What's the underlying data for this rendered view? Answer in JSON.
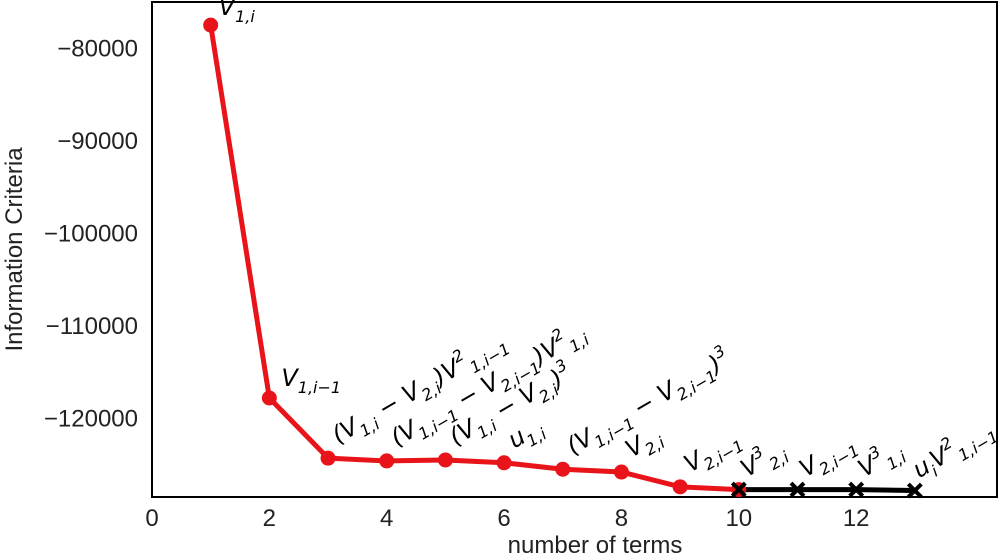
{
  "chart_data": {
    "type": "line",
    "title": "",
    "xlabel": "number of terms",
    "ylabel": "Information Criteria",
    "xlim": [
      0,
      14.4
    ],
    "ylim": [
      -128500,
      -75000
    ],
    "xticks": [
      0,
      2,
      4,
      6,
      8,
      10,
      12
    ],
    "yticks": [
      -80000,
      -90000,
      -100000,
      -110000,
      -120000
    ],
    "ytick_labels": [
      "−80000",
      "−90000",
      "−100000",
      "−110000",
      "−120000"
    ],
    "grid": false,
    "legend": "none",
    "series": [
      {
        "color": "#e8141a",
        "marker": "circle",
        "x": [
          1,
          2,
          3,
          4,
          5,
          6,
          7,
          8,
          9,
          10
        ],
        "y": [
          -77500,
          -117800,
          -124300,
          -124600,
          -124500,
          -124800,
          -125500,
          -125800,
          -127400,
          -127700
        ]
      },
      {
        "color": "#000000",
        "marker": "x",
        "x": [
          10,
          11,
          12,
          13
        ],
        "y": [
          -127700,
          -127700,
          -127700,
          -127800
        ]
      }
    ],
    "annotations": [
      {
        "x": 1,
        "y": -77500,
        "label": "V1,i",
        "rotation": 0
      },
      {
        "x": 2,
        "y": -117800,
        "label": "V1,i−1",
        "rotation": 0
      },
      {
        "x": 3,
        "y": -124300,
        "label": "(V1,i − V2,i)V²1,i−1",
        "rotation": -30
      },
      {
        "x": 4,
        "y": -124600,
        "label": "(V1,i−1 − V2,i−1)V²1,i",
        "rotation": -30
      },
      {
        "x": 5,
        "y": -124500,
        "label": "(V1,i − V2,i)³",
        "rotation": -30
      },
      {
        "x": 6,
        "y": -124800,
        "label": "u1,i",
        "rotation": -30
      },
      {
        "x": 7,
        "y": -125500,
        "label": "(V1,i−1 − V2,i−1)³",
        "rotation": -30
      },
      {
        "x": 8,
        "y": -125800,
        "label": "V2,i",
        "rotation": -30
      },
      {
        "x": 9,
        "y": -127400,
        "label": "V2,i−1",
        "rotation": -30
      },
      {
        "x": 10,
        "y": -127700,
        "label": "V³2,i",
        "rotation": -30
      },
      {
        "x": 11,
        "y": -127700,
        "label": "V2,i−1",
        "rotation": -30
      },
      {
        "x": 12,
        "y": -127700,
        "label": "V³1,i",
        "rotation": -30
      },
      {
        "x": 13,
        "y": -127800,
        "label": "uiV²1,i−1",
        "rotation": -30
      }
    ]
  }
}
